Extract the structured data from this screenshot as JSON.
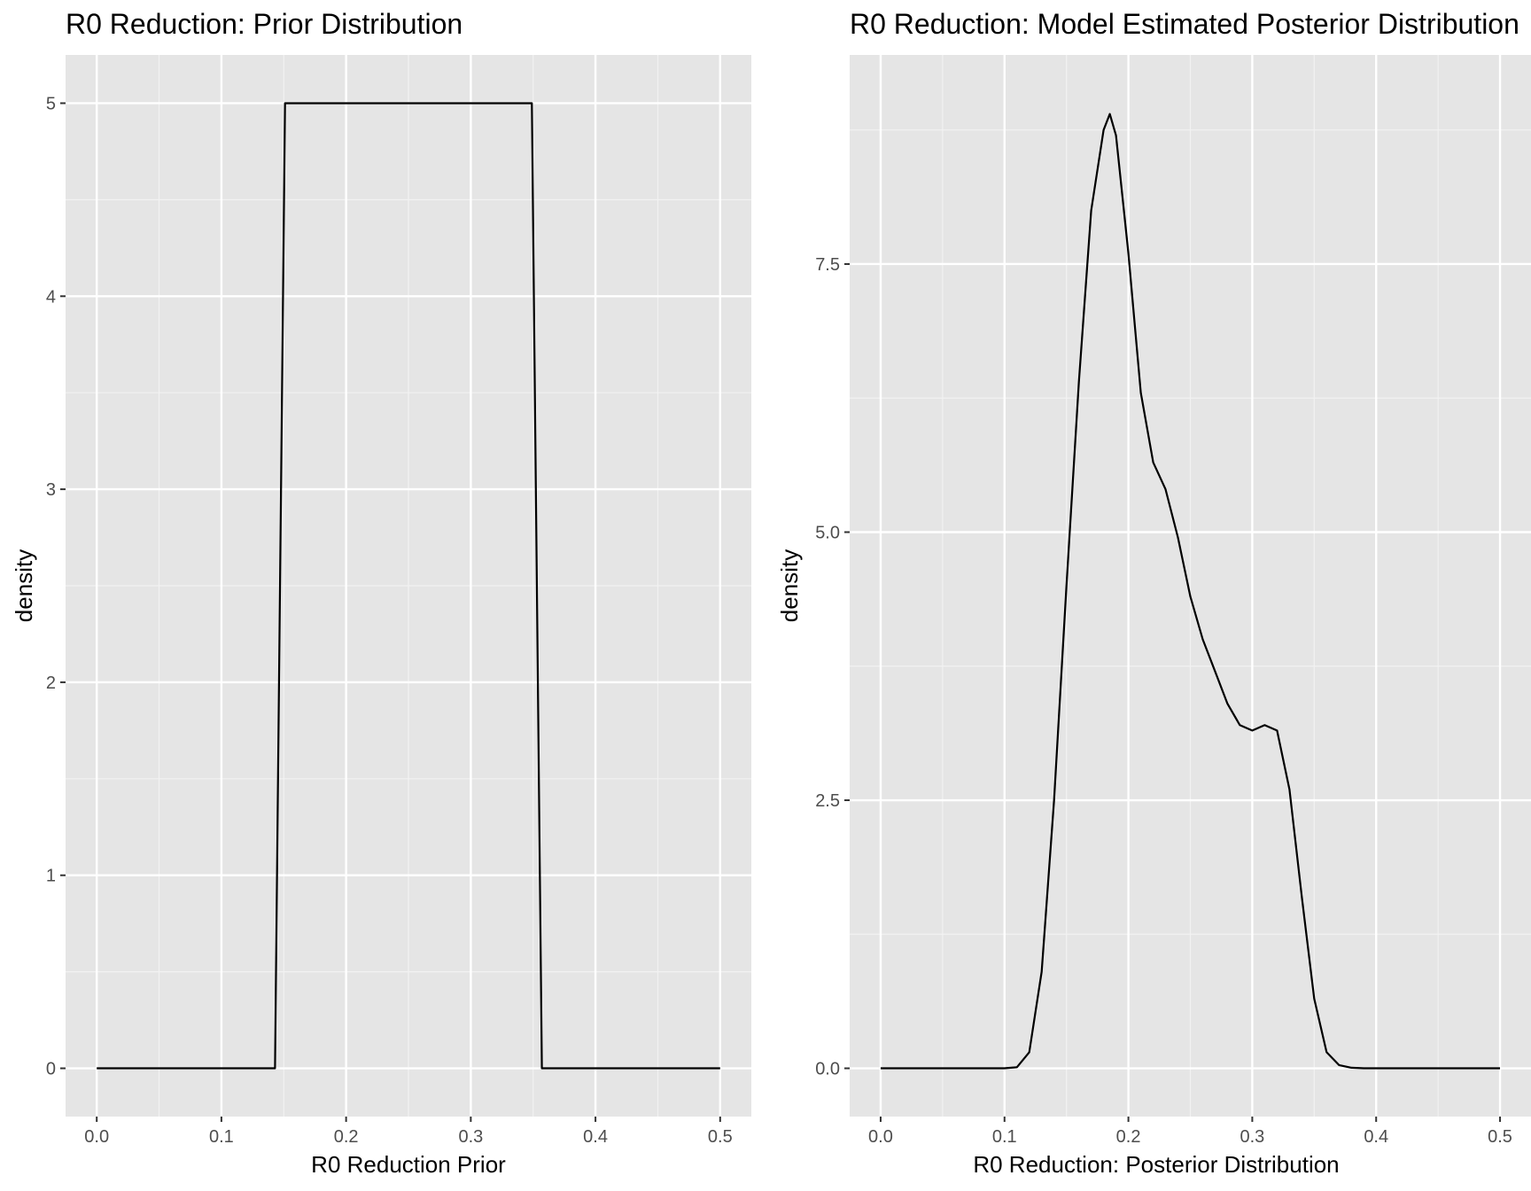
{
  "chart_data": [
    {
      "type": "line",
      "title": "R0 Reduction: Prior Distribution",
      "xlabel": "R0 Reduction Prior",
      "ylabel": "density",
      "xlim": [
        -0.025,
        0.525
      ],
      "ylim": [
        -0.25,
        5.25
      ],
      "xticks": [
        "0.0",
        "0.1",
        "0.2",
        "0.3",
        "0.4",
        "0.5"
      ],
      "yticks": [
        "0",
        "1",
        "2",
        "3",
        "4",
        "5"
      ],
      "grid": true,
      "series": [
        {
          "x": [
            0.0,
            0.143,
            0.151,
            0.349,
            0.357,
            0.5
          ],
          "y": [
            0,
            0,
            5,
            5,
            0,
            0
          ]
        }
      ]
    },
    {
      "type": "line",
      "title": "R0 Reduction: Model Estimated Posterior Distribution",
      "xlabel": "R0 Reduction: Posterior Distribution",
      "ylabel": "density",
      "xlim": [
        -0.025,
        0.525
      ],
      "ylim": [
        -0.45,
        9.45
      ],
      "xticks": [
        "0.0",
        "0.1",
        "0.2",
        "0.3",
        "0.4",
        "0.5"
      ],
      "yticks": [
        "0.0",
        "2.5",
        "5.0",
        "7.5"
      ],
      "grid": true,
      "series": [
        {
          "x": [
            0.0,
            0.1,
            0.11,
            0.12,
            0.13,
            0.14,
            0.15,
            0.16,
            0.17,
            0.18,
            0.185,
            0.19,
            0.2,
            0.21,
            0.22,
            0.23,
            0.24,
            0.25,
            0.26,
            0.27,
            0.28,
            0.29,
            0.3,
            0.31,
            0.32,
            0.33,
            0.34,
            0.35,
            0.36,
            0.37,
            0.38,
            0.39,
            0.5
          ],
          "y": [
            0,
            0,
            0.01,
            0.15,
            0.9,
            2.5,
            4.5,
            6.4,
            8.0,
            8.75,
            8.9,
            8.7,
            7.6,
            6.3,
            5.65,
            5.4,
            4.95,
            4.4,
            4.0,
            3.7,
            3.4,
            3.2,
            3.15,
            3.2,
            3.15,
            2.6,
            1.6,
            0.65,
            0.15,
            0.03,
            0.005,
            0,
            0
          ]
        }
      ]
    }
  ]
}
